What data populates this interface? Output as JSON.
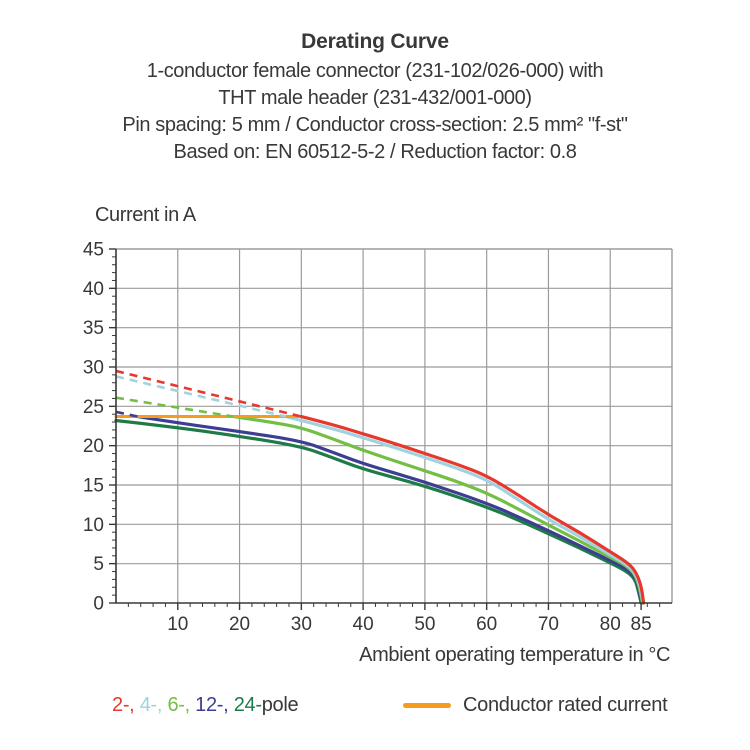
{
  "header": {
    "title": "Derating Curve",
    "subtitle_lines": [
      "1-conductor female connector (231-102/026-000) with",
      "THT male header (231-432/001-000)",
      "Pin spacing: 5 mm / Conductor cross-section: 2.5 mm² \"f-st\"",
      "Based on: EN 60512-5-2 / Reduction factor: 0.8"
    ]
  },
  "chart_data": {
    "type": "line",
    "title": "Derating Curve",
    "xlabel": "Ambient operating temperature in °C",
    "ylabel": "Current in A",
    "xlim": [
      0,
      90
    ],
    "ylim": [
      0,
      45
    ],
    "x_ticks": [
      10,
      20,
      30,
      40,
      50,
      60,
      70,
      80,
      85
    ],
    "y_ticks": [
      0,
      5,
      10,
      15,
      20,
      25,
      30,
      35,
      40,
      45
    ],
    "x_minor_tick_step": 2,
    "y_minor_tick_step": 1,
    "grid": "on",
    "colors": {
      "grid": "#9b9b9b",
      "axis": "#383838",
      "text": "#383838"
    },
    "rated_current_line": {
      "label": "Conductor rated current",
      "color": "#f59b1e",
      "value_a": 23.7,
      "x_from": 0,
      "x_to": 29.5
    },
    "series": [
      {
        "name": "24-pole",
        "color": "#1e7b47",
        "solid": [
          [
            0,
            23.2
          ],
          [
            10,
            22.3
          ],
          [
            20,
            21.2
          ],
          [
            30,
            19.9
          ],
          [
            35,
            18.5
          ],
          [
            40,
            17.0
          ],
          [
            50,
            14.9
          ],
          [
            60,
            12.2
          ],
          [
            65,
            10.6
          ],
          [
            70,
            8.8
          ],
          [
            75,
            7.0
          ],
          [
            80,
            5.1
          ],
          [
            82.5,
            4.1
          ],
          [
            84,
            3.1
          ],
          [
            84.6,
            1.4
          ],
          [
            85,
            0
          ]
        ]
      },
      {
        "name": "12-pole",
        "color": "#3d3d93",
        "dashed": [
          [
            0,
            24.3
          ],
          [
            3.5,
            23.7
          ]
        ],
        "solid": [
          [
            3.5,
            23.7
          ],
          [
            10,
            22.9
          ],
          [
            20,
            21.8
          ],
          [
            30,
            20.6
          ],
          [
            35,
            19.2
          ],
          [
            40,
            17.7
          ],
          [
            50,
            15.4
          ],
          [
            60,
            12.7
          ],
          [
            65,
            11.0
          ],
          [
            70,
            9.2
          ],
          [
            75,
            7.3
          ],
          [
            80,
            5.4
          ],
          [
            82.5,
            4.4
          ],
          [
            84,
            3.4
          ],
          [
            84.7,
            1.6
          ],
          [
            85.1,
            0
          ]
        ]
      },
      {
        "name": "6-pole",
        "color": "#72bf44",
        "dashed": [
          [
            0,
            26.1
          ],
          [
            19,
            23.7
          ]
        ],
        "solid": [
          [
            19,
            23.7
          ],
          [
            25,
            23.0
          ],
          [
            30,
            22.3
          ],
          [
            35,
            20.9
          ],
          [
            40,
            19.4
          ],
          [
            50,
            16.8
          ],
          [
            55,
            15.5
          ],
          [
            60,
            14.0
          ],
          [
            65,
            12.0
          ],
          [
            70,
            9.9
          ],
          [
            75,
            7.9
          ],
          [
            80,
            5.8
          ],
          [
            82.5,
            4.8
          ],
          [
            84,
            3.7
          ],
          [
            84.8,
            1.8
          ],
          [
            85.2,
            0
          ]
        ]
      },
      {
        "name": "4-pole",
        "color": "#9fd3df",
        "dashed": [
          [
            0,
            28.8
          ],
          [
            27.5,
            23.7
          ]
        ],
        "solid": [
          [
            27.5,
            23.7
          ],
          [
            35,
            22.2
          ],
          [
            40,
            21.0
          ],
          [
            45,
            19.8
          ],
          [
            50,
            18.5
          ],
          [
            55,
            17.2
          ],
          [
            60,
            15.7
          ],
          [
            65,
            13.2
          ],
          [
            70,
            10.6
          ],
          [
            75,
            8.5
          ],
          [
            80,
            6.1
          ],
          [
            82.5,
            5.0
          ],
          [
            84,
            3.9
          ],
          [
            84.9,
            2.0
          ],
          [
            85.3,
            0
          ]
        ]
      },
      {
        "name": "2-pole",
        "color": "#e8372c",
        "dashed": [
          [
            0,
            29.5
          ],
          [
            30,
            23.7
          ]
        ],
        "solid": [
          [
            30,
            23.7
          ],
          [
            35,
            22.7
          ],
          [
            40,
            21.5
          ],
          [
            45,
            20.3
          ],
          [
            50,
            19.0
          ],
          [
            55,
            17.7
          ],
          [
            60,
            16.2
          ],
          [
            65,
            13.8
          ],
          [
            70,
            11.2
          ],
          [
            75,
            9.0
          ],
          [
            80,
            6.5
          ],
          [
            82.5,
            5.3
          ],
          [
            84,
            4.2
          ],
          [
            85,
            2.3
          ],
          [
            85.4,
            0
          ]
        ]
      }
    ]
  },
  "legend": {
    "poles": [
      {
        "label": "2-",
        "color": "#e8372c"
      },
      {
        "label": "4-",
        "color": "#9fd3df"
      },
      {
        "label": "6-",
        "color": "#72bf44"
      },
      {
        "label": "12-",
        "color": "#3d3d93"
      },
      {
        "label": "24-",
        "color": "#1e7b47"
      }
    ],
    "pole_suffix": "pole",
    "text_color": "#383838",
    "rated": {
      "label": "Conductor rated current",
      "color": "#f59b1e"
    }
  }
}
